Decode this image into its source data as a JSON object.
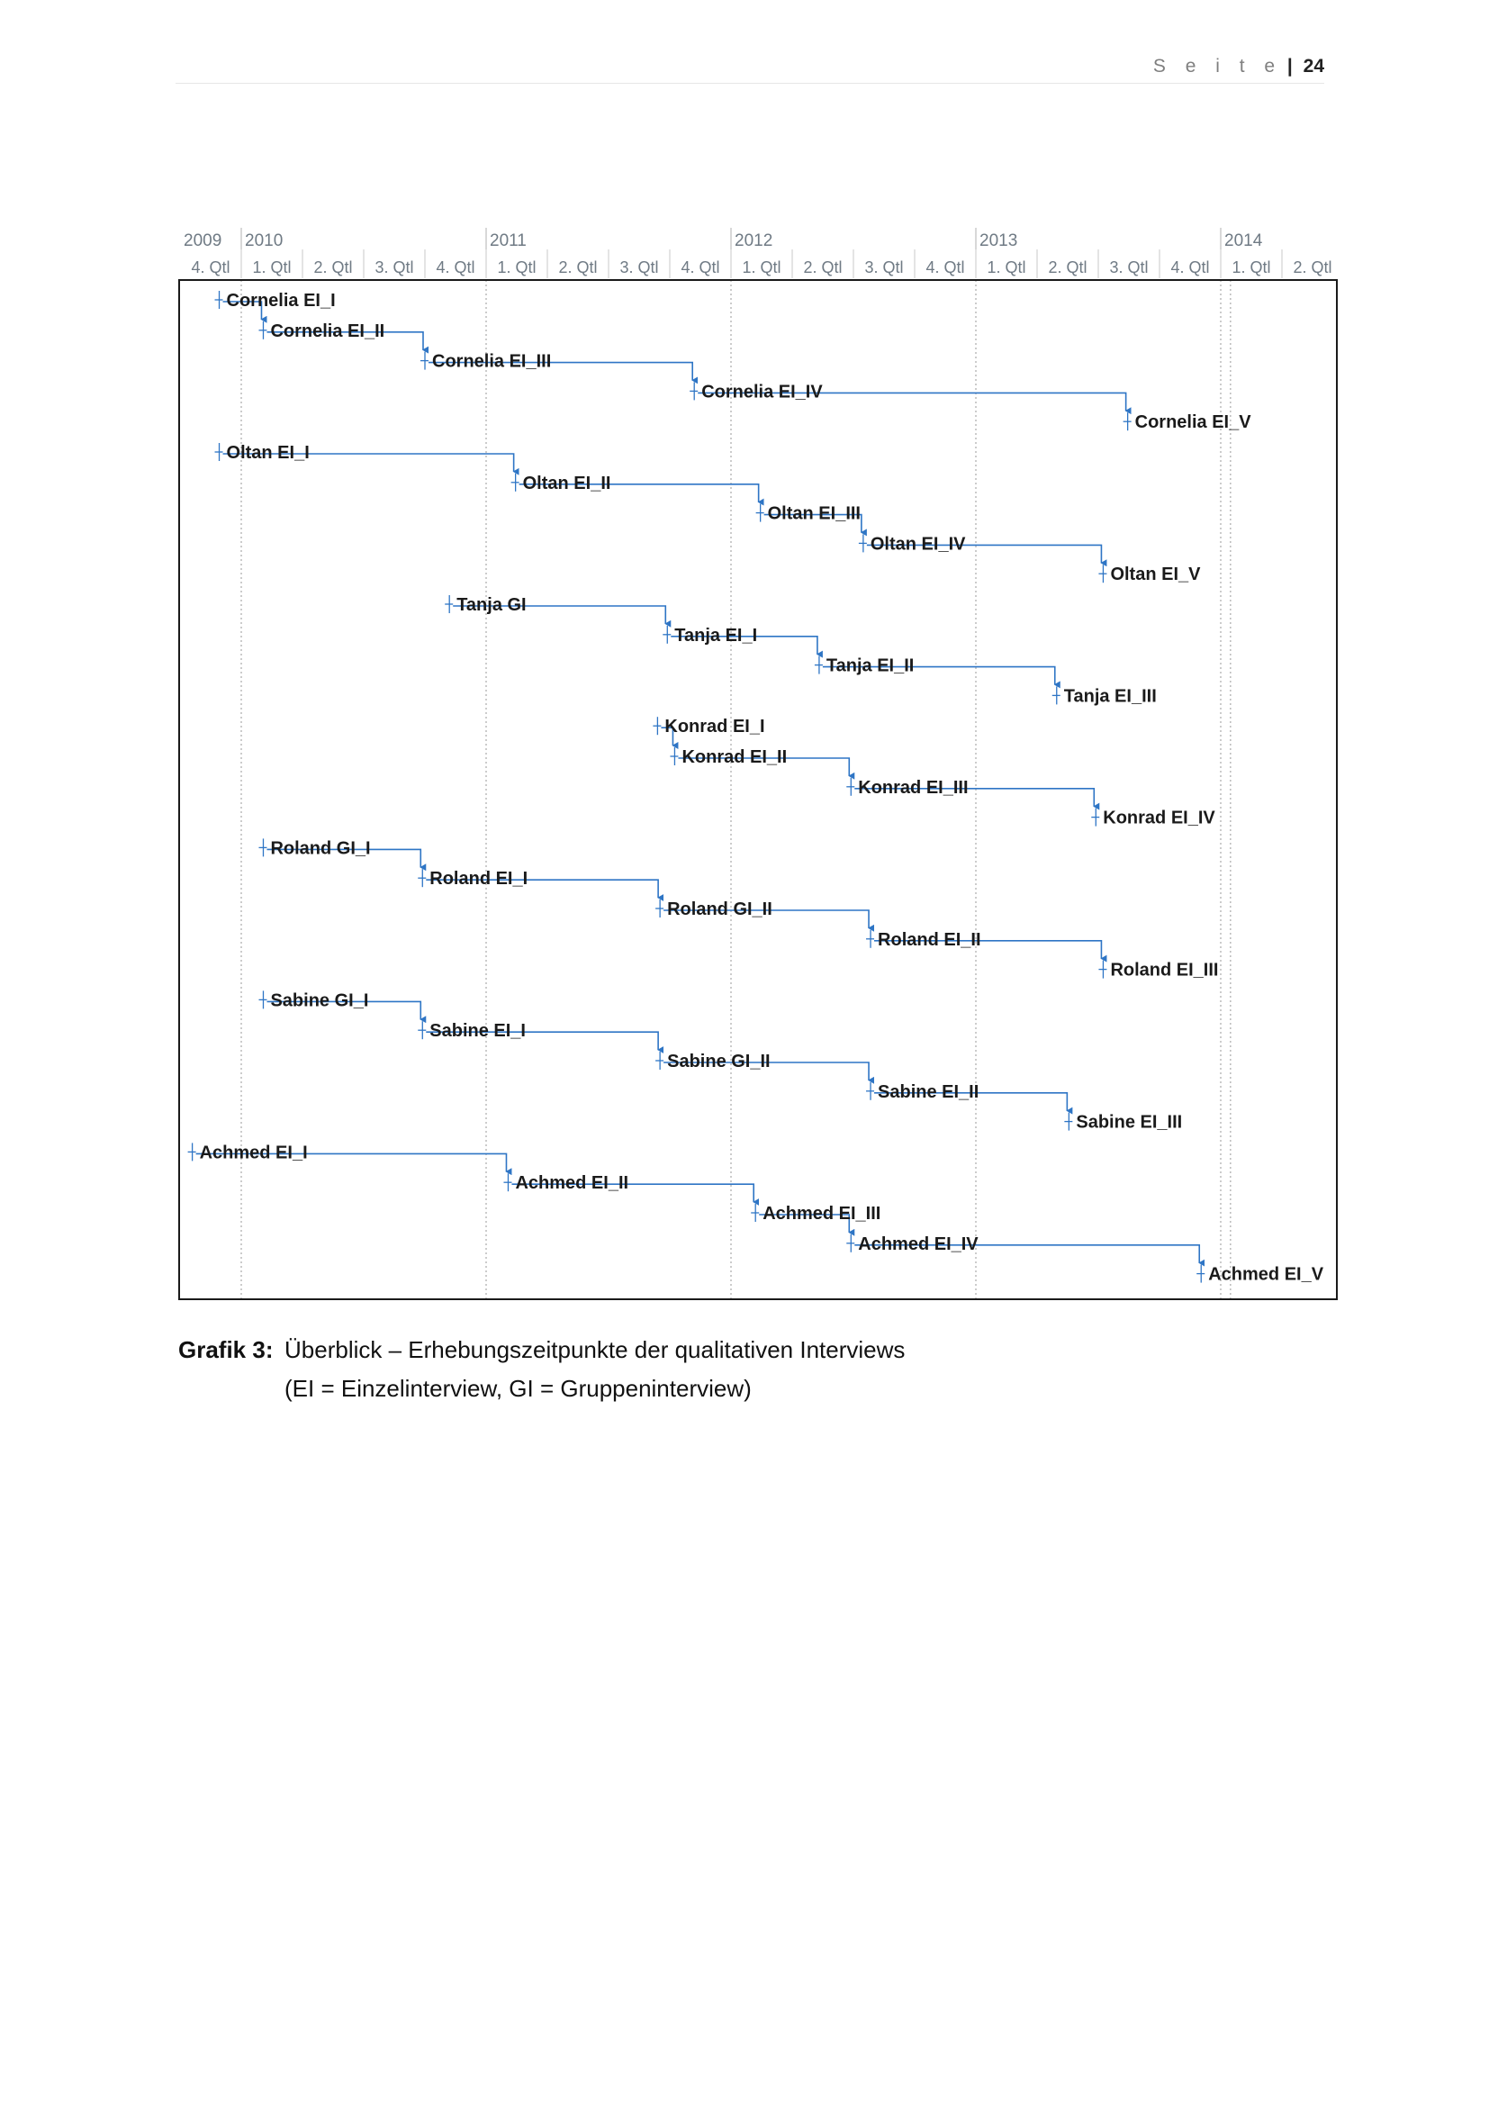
{
  "header": {
    "seite_label": "S e i t e",
    "separator": "|",
    "page_number": "24"
  },
  "timeline": {
    "years": [
      "2009",
      "2010",
      "2011",
      "2012",
      "2013",
      "2014"
    ],
    "quarter_labels": [
      "4. Qtl",
      "1. Qtl",
      "2. Qtl",
      "3. Qtl",
      "4. Qtl",
      "1. Qtl",
      "2. Qtl",
      "3. Qtl",
      "4. Qtl",
      "1. Qtl",
      "2. Qtl",
      "3. Qtl",
      "4. Qtl",
      "1. Qtl",
      "2. Qtl",
      "3. Qtl",
      "4. Qtl",
      "1. Qtl",
      "2. Qtl"
    ]
  },
  "tasks": [
    {
      "label": "Cornelia EI_I",
      "start": 2009.91
    },
    {
      "label": "Cornelia EI_II",
      "start": 2010.09
    },
    {
      "label": "Cornelia EI_III",
      "start": 2010.75
    },
    {
      "label": "Cornelia EI_IV",
      "start": 2011.85
    },
    {
      "label": "Cornelia EI_V",
      "start": 2013.62
    },
    {
      "label": "Oltan EI_I",
      "start": 2009.91
    },
    {
      "label": "Oltan EI_II",
      "start": 2011.12
    },
    {
      "label": "Oltan EI_III",
      "start": 2012.12
    },
    {
      "label": "Oltan EI_IV",
      "start": 2012.54
    },
    {
      "label": "Oltan EI_V",
      "start": 2013.52
    },
    {
      "label": "Tanja GI",
      "start": 2010.85
    },
    {
      "label": "Tanja EI_I",
      "start": 2011.74
    },
    {
      "label": "Tanja EI_II",
      "start": 2012.36
    },
    {
      "label": "Tanja EI_III",
      "start": 2013.33
    },
    {
      "label": "Konrad EI_I",
      "start": 2011.7
    },
    {
      "label": "Konrad EI_II",
      "start": 2011.77
    },
    {
      "label": "Konrad EI_III",
      "start": 2012.49
    },
    {
      "label": "Konrad EI_IV",
      "start": 2013.49
    },
    {
      "label": "Roland GI_I",
      "start": 2010.09
    },
    {
      "label": "Roland EI_I",
      "start": 2010.74
    },
    {
      "label": "Roland GI_II",
      "start": 2011.71
    },
    {
      "label": "Roland EI_II",
      "start": 2012.57
    },
    {
      "label": "Roland EI_III",
      "start": 2013.52
    },
    {
      "label": "Sabine GI_I",
      "start": 2010.09
    },
    {
      "label": "Sabine EI_I",
      "start": 2010.74
    },
    {
      "label": "Sabine GI_II",
      "start": 2011.71
    },
    {
      "label": "Sabine EI_II",
      "start": 2012.57
    },
    {
      "label": "Sabine EI_III",
      "start": 2013.38
    },
    {
      "label": "Achmed EI_I",
      "start": 2009.8
    },
    {
      "label": "Achmed EI_II",
      "start": 2011.09
    },
    {
      "label": "Achmed EI_III",
      "start": 2012.1
    },
    {
      "label": "Achmed EI_IV",
      "start": 2012.49
    },
    {
      "label": "Achmed EI_V",
      "start": 2013.92
    }
  ],
  "caption": {
    "label": "Grafik 3:",
    "line1": "Überblick – Erhebungszeitpunkte der qualitativen Interviews",
    "line2": "(EI = Einzelinterview, GI = Gruppeninterview)"
  },
  "colors": {
    "link": "#2e75c5",
    "frame": "#1a1a1a",
    "grid": "#9a9a9a",
    "axis_text": "#6f7a84"
  }
}
